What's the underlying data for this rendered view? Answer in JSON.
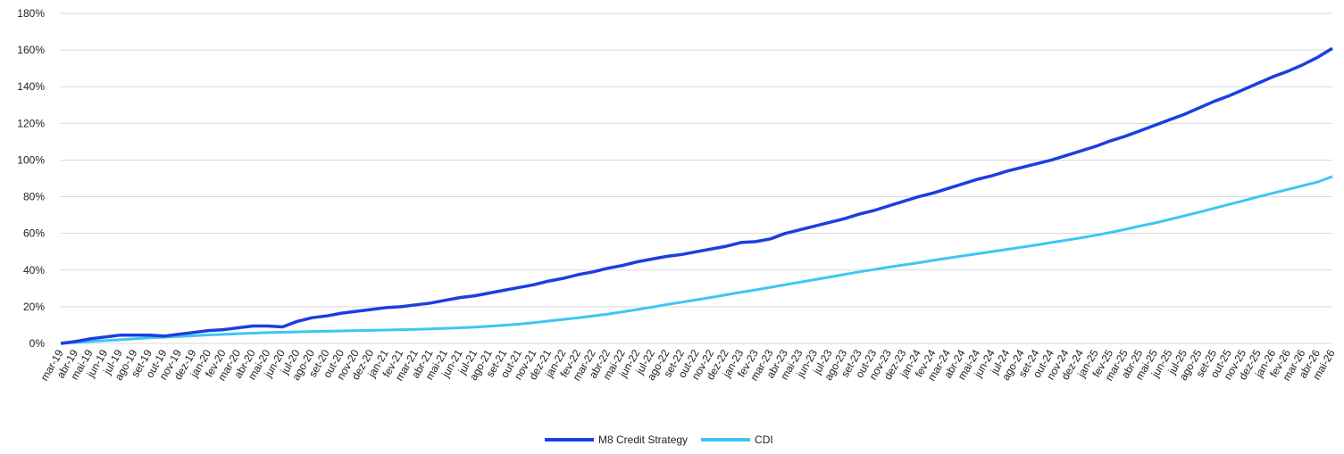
{
  "chart_data": {
    "type": "line",
    "categories": [
      "mar-19",
      "abr-19",
      "mai-19",
      "jun-19",
      "jul-19",
      "ago-19",
      "set-19",
      "out-19",
      "nov-19",
      "dez-19",
      "jan-20",
      "fev-20",
      "mar-20",
      "abr-20",
      "mai-20",
      "jun-20",
      "jul-20",
      "ago-20",
      "set-20",
      "out-20",
      "nov-20",
      "dez-20",
      "jan-21",
      "fev-21",
      "mar-21",
      "abr-21",
      "mai-21",
      "jun-21",
      "jul-21",
      "ago-21",
      "set-21",
      "out-21",
      "nov-21",
      "dez-21",
      "jan-22",
      "fev-22",
      "mar-22",
      "abr-22",
      "mai-22",
      "jun-22",
      "jul-22",
      "ago-22",
      "set-22",
      "out-22",
      "nov-22",
      "dez-22",
      "jan-23",
      "fev-23",
      "mar-23",
      "abr-23",
      "mai-23",
      "jun-23",
      "jul-23",
      "ago-23",
      "set-23",
      "out-23",
      "nov-23",
      "dez-23",
      "jan-24",
      "fev-24",
      "mar-24",
      "abr-24",
      "mai-24",
      "jun-24",
      "jul-24",
      "ago-24",
      "set-24",
      "out-24",
      "nov-24",
      "dez-24",
      "jan-25",
      "fev-25",
      "mar-25",
      "abr-25",
      "mai-25",
      "jun-25",
      "jul-25",
      "ago-25",
      "set-25",
      "out-25",
      "nov-25",
      "dez-25",
      "jan-26",
      "fev-26",
      "mar-26",
      "abr-26",
      "mai-26"
    ],
    "series": [
      {
        "name": "M8 Credit Strategy",
        "color": "#1a3fe0",
        "values": [
          0,
          1,
          2.5,
          3.5,
          4.5,
          4.5,
          4.5,
          4,
          5,
          6,
          7,
          7.5,
          8.5,
          9.5,
          9.5,
          9,
          12,
          14,
          15,
          16.5,
          17.5,
          18.5,
          19.5,
          20,
          21,
          22,
          23.5,
          25,
          26,
          27.5,
          29,
          30.5,
          32,
          34,
          35.5,
          37.5,
          39,
          41,
          42.5,
          44.5,
          46,
          47.5,
          48.5,
          50,
          51.5,
          53,
          55,
          55.5,
          57,
          60,
          62,
          64,
          66,
          68,
          70.5,
          72.5,
          75,
          77.5,
          80,
          82,
          84.5,
          87,
          89.5,
          91.5,
          94,
          96,
          98,
          100,
          102.5,
          105,
          107.5,
          110.5,
          113,
          116,
          119,
          122,
          125,
          128.5,
          132,
          135,
          138.5,
          142,
          145.5,
          148.5,
          152,
          156,
          161
        ]
      },
      {
        "name": "CDI",
        "color": "#3ec6f2",
        "values": [
          0,
          0.5,
          1,
          1.5,
          2,
          2.5,
          3,
          3.4,
          3.8,
          4.2,
          4.6,
          4.9,
          5.3,
          5.6,
          5.9,
          6.1,
          6.3,
          6.5,
          6.6,
          6.8,
          7,
          7.1,
          7.3,
          7.5,
          7.7,
          7.9,
          8.2,
          8.5,
          8.9,
          9.4,
          9.9,
          10.5,
          11.3,
          12.2,
          13.1,
          14,
          15,
          16,
          17.2,
          18.5,
          19.8,
          21.2,
          22.5,
          23.8,
          25.1,
          26.5,
          27.9,
          29.2,
          30.6,
          32,
          33.4,
          34.8,
          36.2,
          37.6,
          39,
          40.3,
          41.6,
          42.8,
          44,
          45.3,
          46.5,
          47.7,
          48.9,
          50.1,
          51.3,
          52.5,
          53.7,
          55,
          56.3,
          57.6,
          59,
          60.5,
          62.2,
          64,
          65.7,
          67.6,
          69.6,
          71.6,
          73.7,
          75.8,
          77.9,
          80,
          82,
          84,
          86,
          88,
          91
        ]
      }
    ],
    "ylim": [
      0,
      180
    ],
    "yticks": [
      {
        "value": 0,
        "label": "0%"
      },
      {
        "value": 20,
        "label": "20%"
      },
      {
        "value": 40,
        "label": "40%"
      },
      {
        "value": 60,
        "label": "60%"
      },
      {
        "value": 80,
        "label": "80%"
      },
      {
        "value": 100,
        "label": "100%"
      },
      {
        "value": 120,
        "label": "120%"
      },
      {
        "value": 140,
        "label": "140%"
      },
      {
        "value": 160,
        "label": "160%"
      },
      {
        "value": 180,
        "label": "180%"
      }
    ],
    "grid": true,
    "legend": "bottom"
  }
}
